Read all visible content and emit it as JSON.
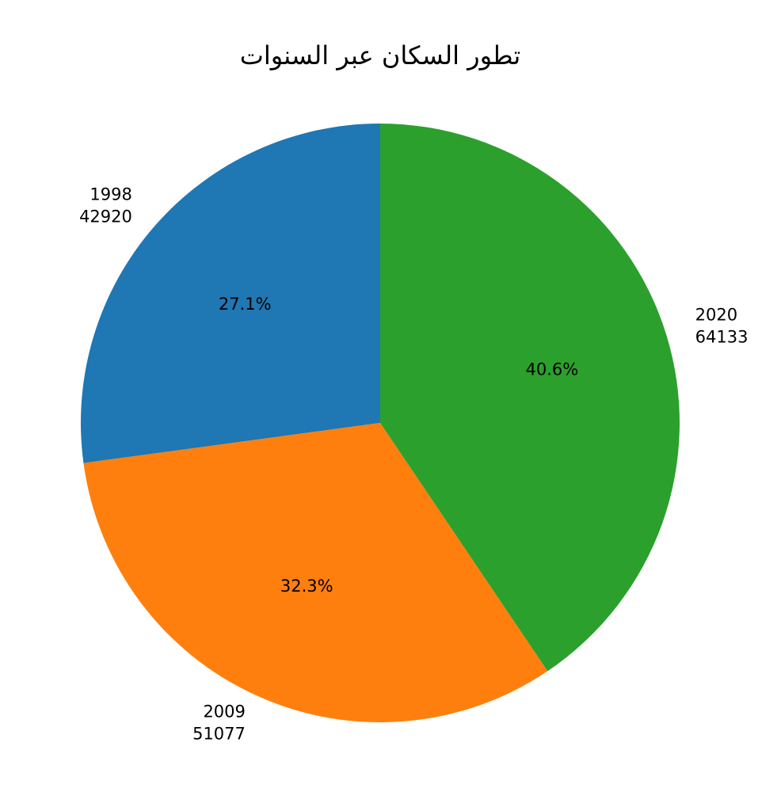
{
  "chart_data": {
    "type": "pie",
    "title": "تطور السكان عبر السنوات",
    "categories": [
      "1998",
      "2009",
      "2020"
    ],
    "values": [
      42920,
      51077,
      64133
    ],
    "percent_labels": [
      "27.1%",
      "32.3%",
      "40.6%"
    ],
    "colors": [
      "#1f77b4",
      "#ff7f0e",
      "#2ca02c"
    ]
  }
}
